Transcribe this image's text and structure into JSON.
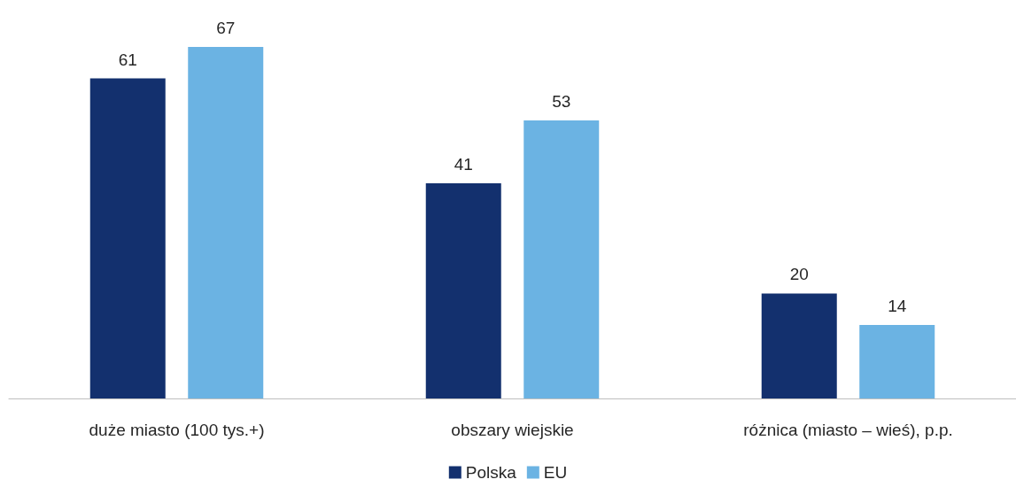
{
  "chart_data": {
    "type": "bar",
    "categories": [
      "duże miasto (100 tys.+)",
      "obszary wiejskie",
      "różnica (miasto – wieś), p.p."
    ],
    "series": [
      {
        "name": "Polska",
        "color": "#13306e",
        "values": [
          61,
          41,
          20
        ]
      },
      {
        "name": "EU",
        "color": "#6bb3e3",
        "values": [
          67,
          53,
          14
        ]
      }
    ],
    "tick_labels": "x",
    "grid": false,
    "legend": "bottom",
    "data_labels": true
  }
}
